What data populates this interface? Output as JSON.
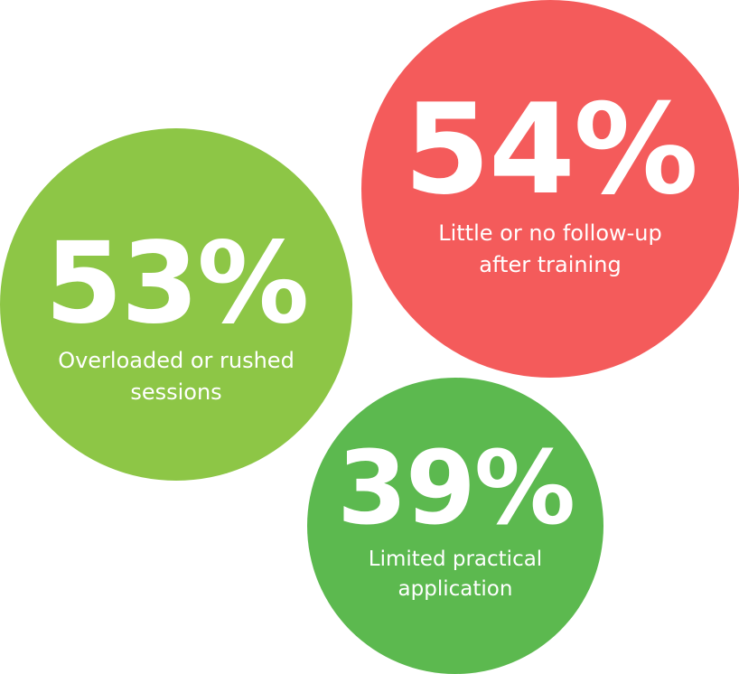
{
  "stats": [
    {
      "value": "53%",
      "label_lines": [
        "Overloaded or rushed",
        "sessions"
      ],
      "color": "#8DC646"
    },
    {
      "value": "54%",
      "label_lines": [
        "Little or no follow-up",
        "after training"
      ],
      "color": "#F45B5B"
    },
    {
      "value": "39%",
      "label_lines": [
        "Limited practical",
        "application"
      ],
      "color": "#5CB94F"
    }
  ]
}
